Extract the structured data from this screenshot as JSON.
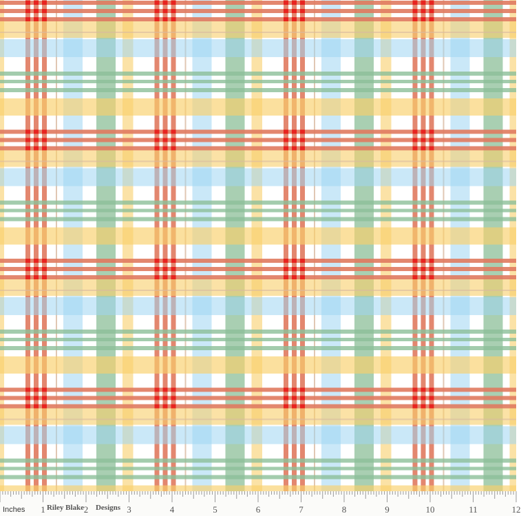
{
  "fabric": {
    "pattern": "plaid",
    "colors": {
      "red": "#e8231f",
      "salmon": "#e07a5f",
      "yellow": "#f9cf6a",
      "blue": "#9fd4f2",
      "green": "#8cbf98",
      "dark_green": "#3f8a4a",
      "tan": "#d9b9a0",
      "background": "#ffffff"
    }
  },
  "ruler": {
    "unit_label": "Inches",
    "numbers": [
      "1",
      "2",
      "3",
      "4",
      "5",
      "6",
      "7",
      "8",
      "9",
      "10",
      "11",
      "12"
    ],
    "brand_words": [
      "Riley Blake",
      "Designs"
    ]
  }
}
